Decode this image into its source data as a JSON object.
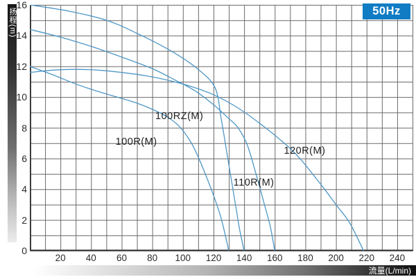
{
  "frequency_badge": {
    "label": "50Hz",
    "bg_color": "#0f7cc4",
    "text_color": "#ffffff"
  },
  "y_axis": {
    "title": "扬程(m)",
    "min": 0,
    "max": 16,
    "grid_step": 1,
    "ticks": [
      0,
      2,
      4,
      6,
      8,
      10,
      12,
      14,
      16
    ]
  },
  "x_axis": {
    "title": "流量(L/min)",
    "min": 0,
    "max": 250,
    "grid_step": 10,
    "ticks": [
      20,
      40,
      60,
      80,
      100,
      120,
      140,
      160,
      180,
      200,
      220,
      240
    ]
  },
  "chart_data": {
    "type": "line",
    "title": "",
    "xlabel": "流量(L/min)",
    "ylabel": "扬程(m)",
    "xlim": [
      0,
      250
    ],
    "ylim": [
      0,
      16
    ],
    "grid": true,
    "line_color": "#4e97c6",
    "grid_color": "#6a6a6a",
    "frame_color": "#3a3a3a",
    "series": [
      {
        "name": "100RZ(M)",
        "label_anchor": {
          "x": 82,
          "y": 9.1
        },
        "points": [
          [
            0,
            16
          ],
          [
            25,
            15.6
          ],
          [
            50,
            15.0
          ],
          [
            71,
            14.1
          ],
          [
            94,
            12.9
          ],
          [
            110,
            11.8
          ],
          [
            121,
            10.6
          ],
          [
            125,
            8.6
          ],
          [
            129,
            6.2
          ],
          [
            132,
            4.4
          ],
          [
            135,
            2.6
          ],
          [
            137,
            1.4
          ],
          [
            140,
            0
          ]
        ]
      },
      {
        "name": "100R(M)",
        "label_anchor": {
          "x": 56,
          "y": 7.45
        },
        "points": [
          [
            0,
            12.0
          ],
          [
            15,
            11.45
          ],
          [
            30,
            10.85
          ],
          [
            45,
            10.35
          ],
          [
            57,
            10.0
          ],
          [
            70,
            9.6
          ],
          [
            80,
            9.2
          ],
          [
            90,
            8.7
          ],
          [
            98,
            8.05
          ],
          [
            105,
            7.1
          ],
          [
            110,
            6.1
          ],
          [
            115,
            4.9
          ],
          [
            120,
            3.6
          ],
          [
            125,
            2.1
          ],
          [
            130,
            0
          ]
        ]
      },
      {
        "name": "110R(M)",
        "label_anchor": {
          "x": 133,
          "y": 4.8
        },
        "points": [
          [
            0,
            14.4
          ],
          [
            20,
            13.9
          ],
          [
            40,
            13.3
          ],
          [
            60,
            12.6
          ],
          [
            80,
            11.85
          ],
          [
            95,
            11.1
          ],
          [
            108,
            10.4
          ],
          [
            120,
            9.5
          ],
          [
            130,
            8.6
          ],
          [
            136,
            8.0
          ],
          [
            142,
            6.9
          ],
          [
            148,
            4.9
          ],
          [
            153,
            3.1
          ],
          [
            157,
            1.6
          ],
          [
            160,
            0
          ]
        ]
      },
      {
        "name": "120R(M)",
        "label_anchor": {
          "x": 166,
          "y": 6.85
        },
        "points": [
          [
            0,
            11.6
          ],
          [
            15,
            11.75
          ],
          [
            30,
            11.8
          ],
          [
            45,
            11.75
          ],
          [
            60,
            11.6
          ],
          [
            75,
            11.4
          ],
          [
            90,
            11.1
          ],
          [
            105,
            10.7
          ],
          [
            120,
            10.15
          ],
          [
            135,
            9.35
          ],
          [
            150,
            8.3
          ],
          [
            165,
            7.1
          ],
          [
            176,
            6.05
          ],
          [
            191,
            4.2
          ],
          [
            200,
            3.0
          ],
          [
            209,
            1.8
          ],
          [
            218,
            0
          ]
        ]
      }
    ]
  }
}
